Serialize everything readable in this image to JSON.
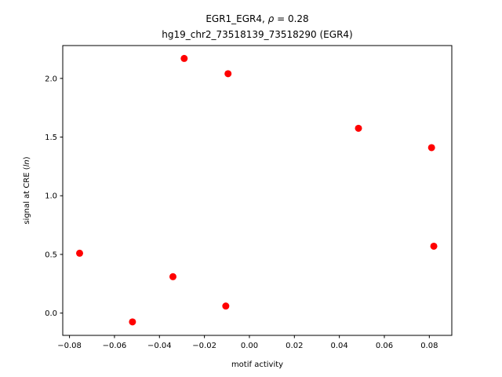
{
  "chart_data": {
    "type": "scatter",
    "title_prefix": "EGR1_EGR4, ",
    "title_rho": "ρ",
    "title_suffix": " = 0.28",
    "subtitle": "hg19_chr2_73518139_73518290 (EGR4)",
    "xlabel": "motif activity",
    "ylabel_prefix": "signal at CRE (",
    "ylabel_italic": "ln",
    "ylabel_suffix": ")",
    "xlim": [
      -0.083,
      0.09
    ],
    "ylim": [
      -0.19,
      2.28
    ],
    "xticks": [
      -0.08,
      -0.06,
      -0.04,
      -0.02,
      0.0,
      0.02,
      0.04,
      0.06,
      0.08
    ],
    "xtick_labels": [
      "−0.08",
      "−0.06",
      "−0.04",
      "−0.02",
      "0.00",
      "0.02",
      "0.04",
      "0.06",
      "0.08"
    ],
    "yticks": [
      0.0,
      0.5,
      1.0,
      1.5,
      2.0
    ],
    "ytick_labels": [
      "0.0",
      "0.5",
      "1.0",
      "1.5",
      "2.0"
    ],
    "grid": false,
    "marker_color": "#ff0000",
    "points": [
      {
        "x": -0.0755,
        "y": 0.51
      },
      {
        "x": -0.052,
        "y": -0.075
      },
      {
        "x": -0.034,
        "y": 0.31
      },
      {
        "x": -0.029,
        "y": 2.17
      },
      {
        "x": -0.0105,
        "y": 0.06
      },
      {
        "x": -0.0095,
        "y": 2.04
      },
      {
        "x": 0.0485,
        "y": 1.575
      },
      {
        "x": 0.081,
        "y": 1.41
      },
      {
        "x": 0.082,
        "y": 0.57
      }
    ]
  }
}
